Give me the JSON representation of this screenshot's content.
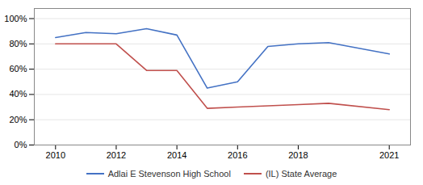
{
  "chart_data": {
    "type": "line",
    "x": [
      2010,
      2011,
      2012,
      2013,
      2014,
      2015,
      2016,
      2017,
      2018,
      2019,
      2021
    ],
    "series": [
      {
        "name": "Adlai E Stevenson High School",
        "color": "#4472C4",
        "values": [
          0.85,
          0.89,
          0.88,
          0.92,
          0.87,
          0.45,
          0.5,
          0.78,
          0.8,
          0.81,
          0.72
        ]
      },
      {
        "name": "(IL) State Average",
        "color": "#C0504D",
        "values": [
          0.8,
          0.8,
          0.8,
          0.59,
          0.59,
          0.29,
          0.3,
          0.31,
          0.32,
          0.33,
          0.28
        ]
      }
    ],
    "xlim": [
      2009.3,
      2021.7
    ],
    "xticks": [
      2010,
      2012,
      2014,
      2016,
      2018,
      2021
    ],
    "ylim": [
      0.0,
      1.08
    ],
    "yticks": [
      {
        "value": 0.0,
        "label": "0%"
      },
      {
        "value": 0.2,
        "label": "20%"
      },
      {
        "value": 0.4,
        "label": "40%"
      },
      {
        "value": 0.6,
        "label": "60%"
      },
      {
        "value": 0.8,
        "label": "80%"
      },
      {
        "value": 1.0,
        "label": "100%"
      }
    ],
    "grid": true,
    "legend": "bottom"
  }
}
